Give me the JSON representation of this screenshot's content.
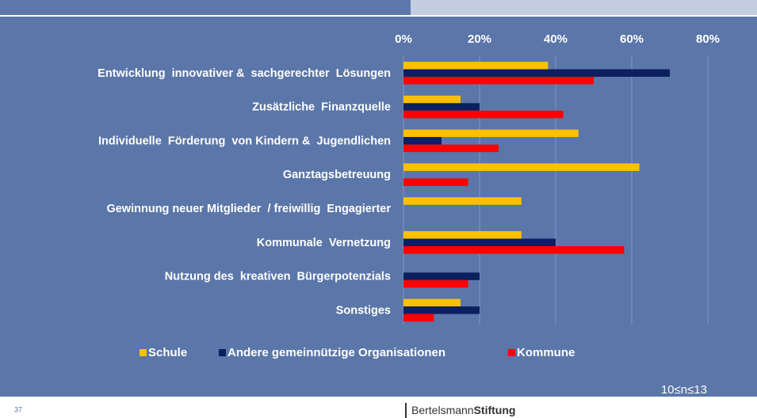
{
  "chart_data": {
    "type": "barh",
    "categories": [
      "Entwicklung  innovativer &  sachgerechter  Lösungen",
      "Zusätzliche  Finanzquelle",
      "Individuelle  Förderung  von Kindern &  Jugendlichen",
      "Ganztagsbetreuung",
      "Gewinnung neuer Mitglieder  / freiwillig  Engagierter",
      "Kommunale  Vernetzung",
      "Nutzung des  kreativen  Bürgerpotenzials",
      "Sonstiges"
    ],
    "series": [
      {
        "name": "Schule",
        "color": "#ffc000",
        "values": [
          38,
          15,
          46,
          62,
          31,
          31,
          null,
          15
        ]
      },
      {
        "name": "Andere gemeinnützige Organisationen",
        "color": "#0c1f5e",
        "values": [
          70,
          20,
          10,
          null,
          null,
          40,
          20,
          20
        ]
      },
      {
        "name": "Kommune",
        "color": "#ff0000",
        "values": [
          50,
          42,
          25,
          17,
          null,
          58,
          17,
          8
        ]
      }
    ],
    "xlim": [
      0,
      80
    ],
    "xticks": [
      {
        "value": 0,
        "label": "0%"
      },
      {
        "value": 20,
        "label": "20%"
      },
      {
        "value": 40,
        "label": "40%"
      },
      {
        "value": 60,
        "label": "60%"
      },
      {
        "value": 80,
        "label": "80%"
      }
    ],
    "grid": true,
    "legend": "bottom",
    "note": "10≤n≤13"
  },
  "page_number": "37",
  "brand": {
    "first": "Bertelsmann",
    "second": "Stiftung"
  }
}
